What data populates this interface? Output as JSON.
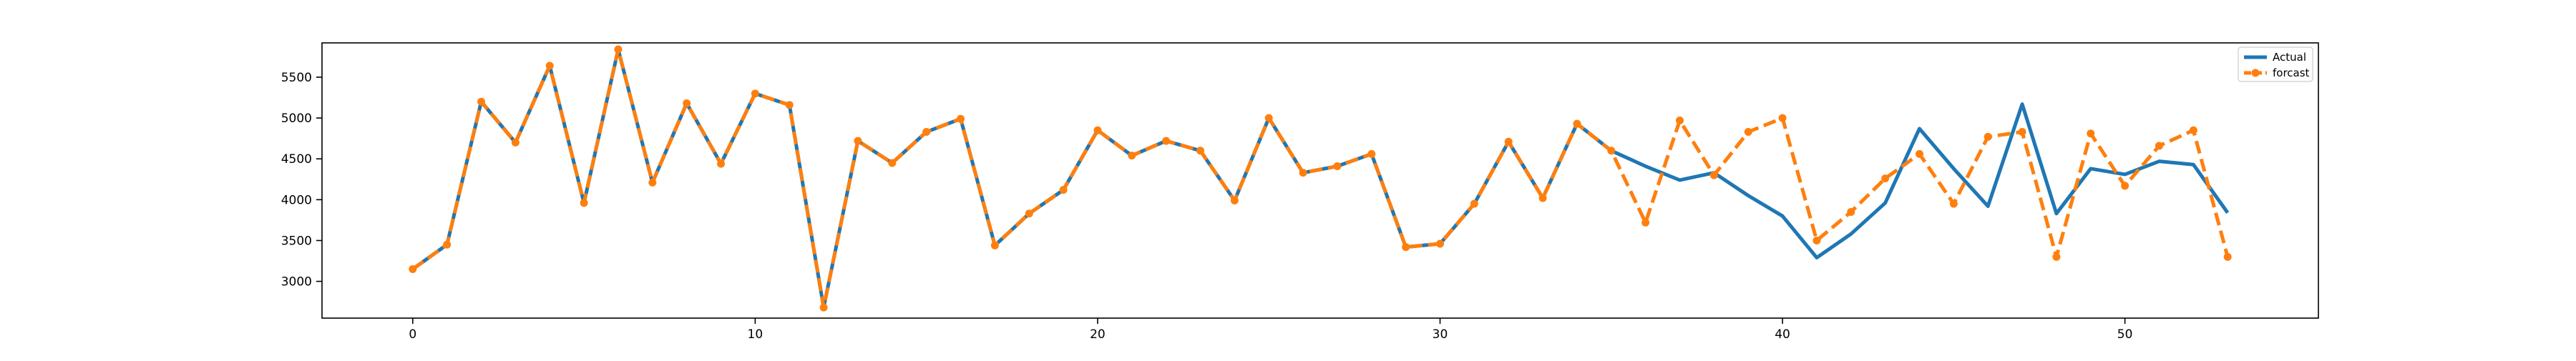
{
  "chart_data": {
    "type": "line",
    "title": "",
    "xlabel": "",
    "ylabel": "",
    "xlim": [
      -2.65,
      55.65
    ],
    "ylim": [
      2550,
      5920
    ],
    "x_ticks": [
      0,
      10,
      20,
      30,
      40,
      50
    ],
    "y_ticks": [
      3000,
      3500,
      4000,
      4500,
      5000,
      5500
    ],
    "grid": false,
    "legend": {
      "placement": "top-right"
    },
    "series": [
      {
        "name": "Actual",
        "color": "#1f77b4",
        "style": "solid",
        "marker": "none",
        "x": [
          0,
          1,
          2,
          3,
          4,
          5,
          6,
          7,
          8,
          9,
          10,
          11,
          12,
          13,
          14,
          15,
          16,
          17,
          18,
          19,
          20,
          21,
          22,
          23,
          24,
          25,
          26,
          27,
          28,
          29,
          30,
          31,
          32,
          33,
          34,
          35,
          36,
          37,
          38,
          39,
          40,
          41,
          42,
          43,
          44,
          45,
          46,
          47,
          48,
          49,
          50,
          51,
          52,
          53
        ],
        "values": [
          3150,
          3450,
          5200,
          4700,
          5640,
          3960,
          5840,
          4210,
          5180,
          4440,
          5300,
          5160,
          2680,
          4720,
          4450,
          4830,
          4990,
          3440,
          3830,
          4120,
          4850,
          4540,
          4720,
          4600,
          3990,
          5000,
          4330,
          4410,
          4560,
          3420,
          3460,
          3950,
          4710,
          4020,
          4930,
          4600,
          4410,
          4240,
          4330,
          4050,
          3800,
          3290,
          3580,
          3960,
          4870,
          4380,
          3920,
          5170,
          3830,
          4380,
          4310,
          4470,
          4430,
          3840
        ]
      },
      {
        "name": "forcast",
        "color": "#ff7f0e",
        "style": "dashed",
        "marker": "circle",
        "x": [
          0,
          1,
          2,
          3,
          4,
          5,
          6,
          7,
          8,
          9,
          10,
          11,
          12,
          13,
          14,
          15,
          16,
          17,
          18,
          19,
          20,
          21,
          22,
          23,
          24,
          25,
          26,
          27,
          28,
          29,
          30,
          31,
          32,
          33,
          34,
          35,
          36,
          37,
          38,
          39,
          40,
          41,
          42,
          43,
          44,
          45,
          46,
          47,
          48,
          49,
          50,
          51,
          52,
          53
        ],
        "values": [
          3150,
          3450,
          5200,
          4700,
          5640,
          3960,
          5840,
          4210,
          5180,
          4440,
          5300,
          5160,
          2680,
          4720,
          4450,
          4830,
          4990,
          3440,
          3830,
          4120,
          4850,
          4540,
          4720,
          4600,
          3990,
          5000,
          4330,
          4410,
          4560,
          3420,
          3460,
          3950,
          4710,
          4020,
          4930,
          4600,
          3720,
          4970,
          4300,
          4830,
          5000,
          3500,
          3850,
          4260,
          4560,
          3950,
          4770,
          4830,
          3300,
          4810,
          4170,
          4660,
          4850,
          3300
        ]
      }
    ]
  }
}
